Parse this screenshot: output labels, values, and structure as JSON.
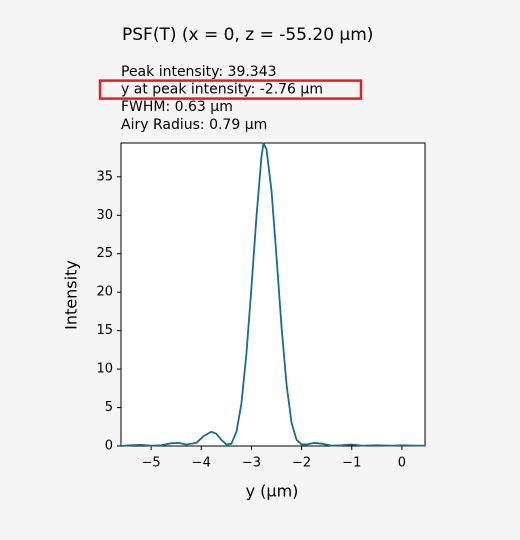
{
  "chart_data": {
    "type": "line",
    "title": "PSF(T) (x = 0, z = -55.20 µm)",
    "annotations": [
      "Peak intensity: 39.343",
      "y at peak intensity: -2.76 µm",
      "FWHM: 0.63 µm",
      "Airy Radius: 0.79 µm"
    ],
    "highlighted_annotation": 1,
    "x_label": "y (µm)",
    "y_label": "Intensity",
    "x": [
      -5.6,
      -5.4,
      -5.2,
      -5.0,
      -4.8,
      -4.6,
      -4.45,
      -4.3,
      -4.1,
      -3.95,
      -3.8,
      -3.7,
      -3.6,
      -3.5,
      -3.4,
      -3.3,
      -3.2,
      -3.1,
      -3.0,
      -2.9,
      -2.8,
      -2.76,
      -2.7,
      -2.6,
      -2.5,
      -2.4,
      -2.3,
      -2.2,
      -2.1,
      -2.0,
      -1.9,
      -1.75,
      -1.6,
      -1.4,
      -1.2,
      -1.0,
      -0.8,
      -0.5,
      -0.2,
      0.0,
      0.3,
      0.46
    ],
    "series": [
      {
        "color": "#176d8a",
        "values": [
          0,
          0.1,
          0.15,
          0.05,
          0.1,
          0.35,
          0.4,
          0.2,
          0.4,
          1.3,
          1.85,
          1.6,
          0.8,
          0.2,
          0.3,
          1.8,
          5.5,
          12.0,
          20.6,
          29.8,
          37.6,
          39.343,
          38.6,
          33.2,
          24.6,
          15.5,
          8.0,
          3.0,
          0.8,
          0.2,
          0.2,
          0.4,
          0.3,
          0.05,
          0.1,
          0.2,
          0.05,
          0.1,
          0.05,
          0.1,
          0.05,
          0.05
        ]
      }
    ],
    "xlim": [
      -5.6,
      0.46
    ],
    "ylim": [
      0,
      39.4
    ],
    "xticks": [
      {
        "value": -5,
        "label": "−5"
      },
      {
        "value": -4,
        "label": "−4"
      },
      {
        "value": -3,
        "label": "−3"
      },
      {
        "value": -2,
        "label": "−2"
      },
      {
        "value": -1,
        "label": "−1"
      },
      0
    ],
    "yticks": [
      0,
      5,
      10,
      15,
      20,
      25,
      30,
      35
    ],
    "grid": false
  }
}
